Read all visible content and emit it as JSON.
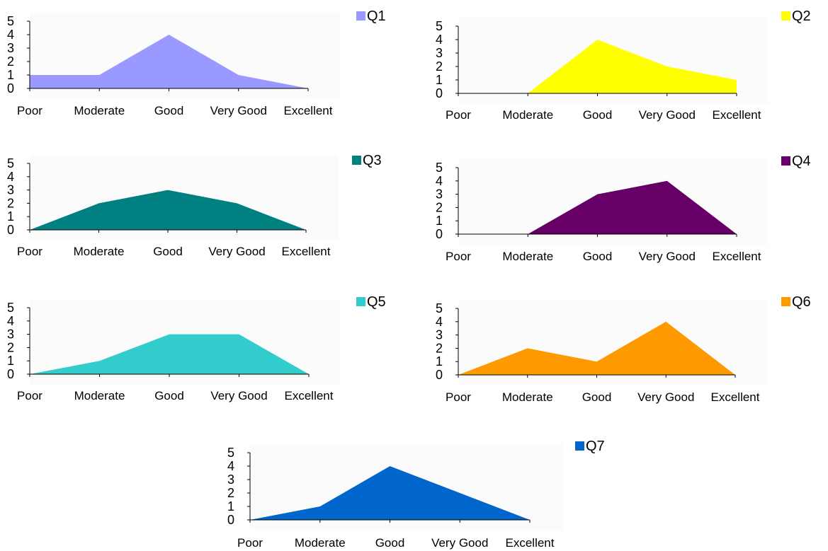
{
  "chart_data": [
    {
      "type": "area",
      "legend": "Q1",
      "color": "#9999ff",
      "categories": [
        "Poor",
        "Moderate",
        "Good",
        "Very Good",
        "Excellent"
      ],
      "values": [
        1,
        1,
        4,
        1,
        0
      ],
      "yticks": [
        "0",
        "1",
        "2",
        "3",
        "4",
        "5"
      ],
      "ylim": [
        0,
        5
      ],
      "legend_position": "top-right",
      "grid": false
    },
    {
      "type": "area",
      "legend": "Q2",
      "color": "#ffff00",
      "categories": [
        "Poor",
        "Moderate",
        "Good",
        "Very Good",
        "Excellent"
      ],
      "values": [
        0,
        0,
        4,
        2,
        1
      ],
      "yticks": [
        "0",
        "1",
        "2",
        "3",
        "4",
        "5"
      ],
      "ylim": [
        0,
        5
      ],
      "legend_position": "top-right",
      "grid": false
    },
    {
      "type": "area",
      "legend": "Q3",
      "color": "#008080",
      "categories": [
        "Poor",
        "Moderate",
        "Good",
        "Very Good",
        "Excellent"
      ],
      "values": [
        0,
        2,
        3,
        2,
        0
      ],
      "yticks": [
        "0",
        "1",
        "2",
        "3",
        "4",
        "5"
      ],
      "ylim": [
        0,
        5
      ],
      "legend_position": "top-right",
      "grid": false
    },
    {
      "type": "area",
      "legend": "Q4",
      "color": "#660066",
      "categories": [
        "Poor",
        "Moderate",
        "Good",
        "Very Good",
        "Excellent"
      ],
      "values": [
        0,
        0,
        3,
        4,
        0
      ],
      "yticks": [
        "0",
        "1",
        "2",
        "3",
        "4",
        "5"
      ],
      "ylim": [
        0,
        5
      ],
      "legend_position": "top-right",
      "grid": false
    },
    {
      "type": "area",
      "legend": "Q5",
      "color": "#33cccc",
      "categories": [
        "Poor",
        "Moderate",
        "Good",
        "Very Good",
        "Excellent"
      ],
      "values": [
        0,
        1,
        3,
        3,
        0
      ],
      "yticks": [
        "0",
        "1",
        "2",
        "3",
        "4",
        "5"
      ],
      "ylim": [
        0,
        5
      ],
      "legend_position": "top-right",
      "grid": false
    },
    {
      "type": "area",
      "legend": "Q6",
      "color": "#ff9900",
      "categories": [
        "Poor",
        "Moderate",
        "Good",
        "Very Good",
        "Excellent"
      ],
      "values": [
        0,
        2,
        1,
        4,
        0
      ],
      "yticks": [
        "0",
        "1",
        "2",
        "3",
        "4",
        "5"
      ],
      "ylim": [
        0,
        5
      ],
      "legend_position": "top-right",
      "grid": false
    },
    {
      "type": "area",
      "legend": "Q7",
      "color": "#0066cc",
      "categories": [
        "Poor",
        "Moderate",
        "Good",
        "Very Good",
        "Excellent"
      ],
      "values": [
        0,
        1,
        4,
        2,
        0
      ],
      "yticks": [
        "0",
        "1",
        "2",
        "3",
        "4",
        "5"
      ],
      "ylim": [
        0,
        5
      ],
      "legend_position": "top-right",
      "grid": false
    }
  ]
}
